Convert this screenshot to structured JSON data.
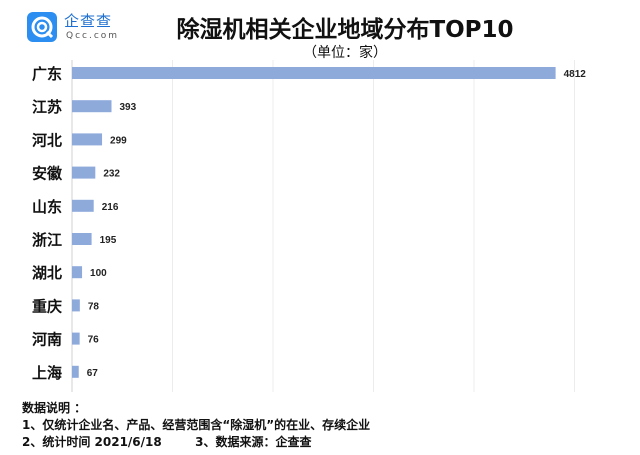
{
  "logo": {
    "cn": "企查查",
    "en": "Qcc.com"
  },
  "chart_data": {
    "type": "bar",
    "orientation": "horizontal",
    "title": "除湿机相关企业地域分布TOP10",
    "subtitle": "（单位：家）",
    "categories": [
      "广东",
      "江苏",
      "河北",
      "安徽",
      "山东",
      "浙江",
      "湖北",
      "重庆",
      "河南",
      "上海"
    ],
    "values": [
      4812,
      393,
      299,
      232,
      216,
      195,
      100,
      78,
      76,
      67
    ],
    "xlim": [
      0,
      5000
    ],
    "grid": true,
    "bar_color": "#8eaadb"
  },
  "notes": {
    "heading": "数据说明 ：",
    "line1": "1、仅统计企业名、产品、经营范围含“除湿机”的在业、存续企业",
    "line2a": "2、统计时间 2021/6/18",
    "line2b": "3、数据来源：企查查"
  }
}
